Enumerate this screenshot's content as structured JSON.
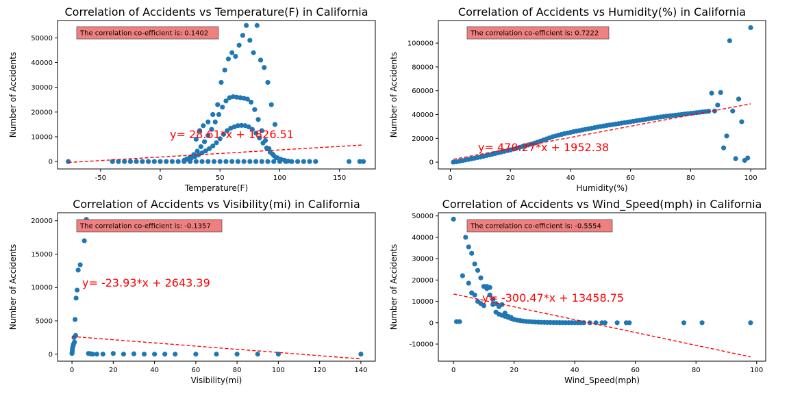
{
  "chart_data": [
    {
      "type": "scatter",
      "title": "Correlation of Accidents vs Temperature(F) in California",
      "xlabel": "Temperature(F)",
      "ylabel": "Number of Accidents",
      "xlim": [
        -86,
        180
      ],
      "ylim": [
        -3000,
        57000
      ],
      "xticks": [
        -50,
        0,
        50,
        100,
        150
      ],
      "yticks": [
        0,
        10000,
        20000,
        30000,
        40000,
        50000
      ],
      "annotation_box": "The correlation co-efficient is: 0.1402",
      "equation": "y= 28.61*x + 1826.51",
      "regression": {
        "slope": 28.61,
        "intercept": 1826.51,
        "x_range": [
          -77,
          170
        ]
      },
      "colors": {
        "points": "#1f77b4",
        "fit": "#ff0000",
        "box": "#f08080"
      },
      "series": [
        {
          "x": [
            -77,
            -40,
            -35,
            -30,
            -25,
            -20,
            -15,
            -10,
            -5,
            0,
            5,
            10,
            15,
            20,
            25,
            30,
            35,
            40,
            45,
            50,
            55,
            60,
            65,
            70,
            75,
            80,
            85,
            90,
            95,
            100,
            105,
            110,
            115,
            120,
            125,
            130,
            158,
            167,
            170
          ],
          "y": [
            0,
            0,
            0,
            0,
            0,
            0,
            0,
            0,
            0,
            0,
            0,
            0,
            0,
            0,
            0,
            0,
            0,
            0,
            0,
            0,
            0,
            0,
            0,
            0,
            0,
            0,
            0,
            0,
            0,
            0,
            0,
            0,
            0,
            0,
            0,
            0,
            0,
            0,
            0
          ]
        },
        {
          "x": [
            20,
            23,
            26,
            29,
            32,
            35,
            38,
            41,
            44,
            47,
            50,
            53,
            56,
            59,
            62,
            65,
            68,
            71,
            74,
            77,
            80,
            83,
            86,
            89,
            92,
            95,
            98,
            101,
            104,
            107
          ],
          "y": [
            500,
            900,
            1400,
            2000,
            2700,
            3500,
            4300,
            5200,
            6300,
            7600,
            9200,
            11000,
            12500,
            13500,
            14000,
            14500,
            14600,
            14500,
            14000,
            13000,
            11500,
            9500,
            7500,
            5500,
            3800,
            2400,
            1500,
            900,
            500,
            200
          ]
        },
        {
          "x": [
            22,
            25,
            28,
            31,
            34,
            37,
            40,
            43,
            46,
            49,
            52,
            55,
            58,
            61,
            64,
            67,
            70,
            73,
            76,
            79,
            82,
            85,
            88,
            91,
            94,
            97,
            100
          ],
          "y": [
            1000,
            1800,
            2800,
            4200,
            6000,
            8000,
            10500,
            13000,
            16000,
            19000,
            22000,
            24500,
            25800,
            26200,
            26000,
            25800,
            25600,
            25200,
            24000,
            21000,
            17000,
            12500,
            8500,
            5200,
            3000,
            1600,
            800
          ]
        },
        {
          "x": [
            30,
            33,
            36,
            40,
            44,
            48,
            51,
            54,
            57,
            60,
            63,
            66,
            69,
            72,
            75,
            78,
            81,
            84,
            87,
            90,
            93,
            96
          ],
          "y": [
            9000,
            12500,
            14500,
            16000,
            19000,
            23000,
            32000,
            37000,
            41500,
            44000,
            42500,
            47000,
            51000,
            55000,
            49000,
            44000,
            55000,
            41000,
            38000,
            32000,
            23000,
            15000
          ]
        }
      ]
    },
    {
      "type": "scatter",
      "title": "Correlation of Accidents vs Humidity(%) in California",
      "xlabel": "Humidity(%)",
      "ylabel": "Number of Accidents",
      "xlim": [
        -4,
        105
      ],
      "ylim": [
        -5700,
        119000
      ],
      "xticks": [
        0,
        20,
        40,
        60,
        80,
        100
      ],
      "yticks": [
        0,
        20000,
        40000,
        60000,
        80000,
        100000
      ],
      "annotation_box": "The correlation co-efficient is: 0.7222",
      "equation": "y= 470.27*x + 1952.38",
      "regression": {
        "slope": 470.27,
        "intercept": 1952.38,
        "x_range": [
          1,
          100
        ]
      },
      "colors": {
        "points": "#1f77b4",
        "fit": "#ff0000",
        "box": "#f08080"
      },
      "series": [
        {
          "x": [
            1,
            2,
            3,
            4,
            5,
            6,
            7,
            8,
            9,
            10,
            11,
            12,
            13,
            14,
            15,
            16,
            17,
            18,
            19,
            20,
            21,
            22,
            23,
            24,
            25,
            26,
            27,
            28,
            29,
            30,
            31,
            32,
            33,
            34,
            35,
            36,
            37,
            38,
            39,
            40,
            41,
            42,
            43,
            44,
            45,
            46,
            47,
            48,
            49,
            50,
            51,
            52,
            53,
            54,
            55,
            56,
            57,
            58,
            59,
            60,
            61,
            62,
            63,
            64,
            65,
            66,
            67,
            68,
            69,
            70,
            71,
            72,
            73,
            74,
            75,
            76,
            77,
            78,
            79,
            80,
            81,
            82,
            83,
            84,
            85,
            86,
            87,
            88,
            89,
            90,
            91,
            92,
            93,
            94,
            95,
            96,
            97,
            98,
            99,
            100
          ],
          "y": [
            0,
            300,
            800,
            1300,
            1800,
            2300,
            2800,
            3300,
            3800,
            4300,
            4900,
            5500,
            6100,
            6700,
            7300,
            7900,
            8500,
            9100,
            9700,
            10300,
            11000,
            11700,
            12400,
            13100,
            13800,
            14500,
            15200,
            16000,
            16800,
            17700,
            18600,
            19500,
            20400,
            21300,
            22000,
            22700,
            23300,
            24000,
            24500,
            25000,
            25600,
            26100,
            26600,
            27100,
            27600,
            28000,
            28500,
            29000,
            29500,
            30000,
            30400,
            30800,
            31200,
            31600,
            32000,
            32400,
            32800,
            33200,
            33600,
            34000,
            34400,
            34800,
            35200,
            35600,
            36000,
            36400,
            36800,
            37200,
            37600,
            38000,
            38300,
            38600,
            38900,
            39200,
            39500,
            39800,
            40100,
            40400,
            40700,
            41000,
            41300,
            41600,
            41900,
            42200,
            42500,
            42800,
            58000,
            43000,
            48000,
            58500,
            12000,
            22000,
            102000,
            43000,
            3000,
            53000,
            34000,
            1500,
            3500,
            113000
          ]
        }
      ]
    },
    {
      "type": "scatter",
      "title": "Correlation of Accidents vs Visibility(mi) in California",
      "xlabel": "Visibility(mi)",
      "ylabel": "Number of Accidents",
      "xlim": [
        -7,
        147
      ],
      "ylim": [
        -1050,
        21200
      ],
      "xticks": [
        0,
        20,
        40,
        60,
        80,
        100,
        120,
        140
      ],
      "yticks": [
        0,
        5000,
        10000,
        15000,
        20000
      ],
      "annotation_box": "The correlation co-efficient is: -0.1357",
      "equation": "y= -23.93*x + 2643.39",
      "regression": {
        "slope": -23.93,
        "intercept": 2643.39,
        "x_range": [
          0,
          140
        ]
      },
      "colors": {
        "points": "#1f77b4",
        "fit": "#ff0000",
        "box": "#f08080"
      },
      "series": [
        {
          "x": [
            0,
            0.1,
            0.2,
            0.25,
            0.5,
            0.75,
            1,
            1.2,
            1.5,
            1.75,
            2,
            2.5,
            3,
            4,
            5,
            6,
            7,
            8,
            9,
            10,
            12,
            15,
            20,
            25,
            30,
            35,
            40,
            45,
            50,
            60,
            70,
            80,
            90,
            100,
            140
          ],
          "y": [
            100,
            300,
            600,
            900,
            1200,
            1500,
            2500,
            1800,
            5200,
            2800,
            8400,
            9600,
            12600,
            13400,
            19800,
            17000,
            20200,
            100,
            50,
            0,
            0,
            0,
            100,
            0,
            50,
            0,
            0,
            0,
            0,
            0,
            0,
            0,
            0,
            0,
            0
          ]
        }
      ]
    },
    {
      "type": "scatter",
      "title": "Correlation of Accidents vs Wind_Speed(mph) in California",
      "xlabel": "Wind_Speed(mph)",
      "ylabel": "Number of Accidents",
      "xlim": [
        -5,
        103
      ],
      "ylim": [
        -18000,
        51500
      ],
      "xticks": [
        0,
        20,
        40,
        60,
        80,
        100
      ],
      "yticks": [
        -10000,
        0,
        10000,
        20000,
        30000,
        40000,
        50000
      ],
      "annotation_box": "The correlation co-efficient is: -0.5554",
      "equation": "y= -300.47*x + 13458.75",
      "regression": {
        "slope": -300.47,
        "intercept": 13458.75,
        "x_range": [
          0,
          98
        ]
      },
      "colors": {
        "points": "#1f77b4",
        "fit": "#ff0000",
        "box": "#f08080"
      },
      "series": [
        {
          "x": [
            0,
            1,
            2,
            3,
            4,
            5,
            6,
            7,
            8,
            9,
            10,
            11,
            12,
            13,
            14,
            15,
            16,
            17,
            18,
            19,
            20,
            21,
            22,
            23,
            24,
            25,
            26,
            27,
            28,
            29,
            30,
            31,
            32,
            33,
            34,
            35,
            36,
            37,
            38,
            39,
            40,
            41,
            42,
            43,
            45,
            47,
            49,
            50,
            54,
            57,
            58,
            76,
            82,
            98
          ],
          "y": [
            48500,
            500,
            500,
            22000,
            40000,
            35500,
            32500,
            27500,
            24500,
            21000,
            17000,
            16000,
            13000,
            11000,
            9000,
            7500,
            3500,
            3000,
            2500,
            2000,
            1500,
            1200,
            1000,
            800,
            600,
            500,
            400,
            300,
            250,
            200,
            150,
            120,
            100,
            80,
            60,
            50,
            40,
            30,
            25,
            20,
            15,
            10,
            8,
            5,
            0,
            0,
            0,
            0,
            0,
            0,
            0,
            0,
            0,
            0
          ]
        },
        {
          "x": [
            5,
            6,
            7,
            8,
            9,
            10,
            11,
            12,
            13,
            14,
            15,
            16,
            17,
            18,
            19,
            20,
            22
          ],
          "y": [
            18500,
            14000,
            13000,
            10000,
            9000,
            8000,
            17000,
            16500,
            8500,
            5000,
            4000,
            8500,
            4500,
            3000,
            2500,
            1500,
            1000
          ]
        }
      ]
    }
  ]
}
